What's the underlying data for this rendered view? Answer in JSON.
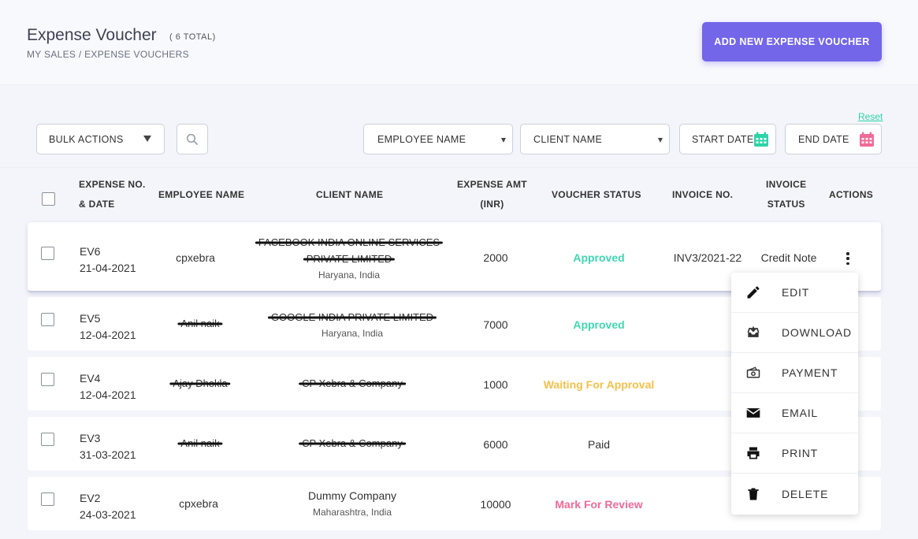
{
  "header": {
    "title": "Expense Voucher",
    "total": "( 6 TOTAL)",
    "breadcrumb": "MY SALES / EXPENSE VOUCHERS",
    "add_button": "ADD NEW EXPENSE VOUCHER"
  },
  "filters": {
    "reset": "Reset",
    "bulk_actions": "BULK ACTIONS",
    "employee_name": "EMPLOYEE NAME",
    "client_name": "CLIENT NAME",
    "start_date": "START DATE",
    "end_date": "END DATE"
  },
  "table": {
    "headers": {
      "expense_no_line1": "EXPENSE NO.",
      "expense_no_line2": "& DATE",
      "employee_name": "EMPLOYEE NAME",
      "client_name": "CLIENT NAME",
      "expense_amt_line1": "EXPENSE AMT",
      "expense_amt_line2": "(INR)",
      "voucher_status": "VOUCHER STATUS",
      "invoice_no": "INVOICE NO.",
      "invoice_status_line1": "INVOICE",
      "invoice_status_line2": "STATUS",
      "actions": "ACTIONS"
    },
    "rows": [
      {
        "no": "EV6",
        "date": "21-04-2021",
        "employee": "cpxebra",
        "client_line1": "FACEBOOK INDIA ONLINE SERVICES",
        "client_line2": "PRIVATE LIMITED",
        "location": "Haryana, India",
        "amount": "2000",
        "status": "Approved",
        "invoice_no": "INV3/2021-22",
        "invoice_status": "Credit Note"
      },
      {
        "no": "EV5",
        "date": "12-04-2021",
        "employee": "Anil naik",
        "client_line1": "GOOGLE INDIA PRIVATE LIMITED",
        "location": "Haryana, India",
        "amount": "7000",
        "status": "Approved"
      },
      {
        "no": "EV4",
        "date": "12-04-2021",
        "employee": "Ajay Dhokla",
        "client_line1": "CP Xebra & Company",
        "amount": "1000",
        "status": "Waiting For Approval"
      },
      {
        "no": "EV3",
        "date": "31-03-2021",
        "employee": "Anil naik",
        "client_line1": "CP Xebra & Company",
        "amount": "6000",
        "status": "Paid"
      },
      {
        "no": "EV2",
        "date": "24-03-2021",
        "employee": "cpxebra",
        "client_line1": "Dummy Company",
        "location": "Maharashtra, India",
        "amount": "10000",
        "status": "Mark For Review"
      }
    ]
  },
  "action_menu": {
    "items": [
      {
        "label": "EDIT",
        "icon": "pencil-icon"
      },
      {
        "label": "DOWNLOAD",
        "icon": "download-tray-icon"
      },
      {
        "label": "PAYMENT",
        "icon": "cash-icon"
      },
      {
        "label": "EMAIL",
        "icon": "envelope-icon"
      },
      {
        "label": "PRINT",
        "icon": "printer-icon"
      },
      {
        "label": "DELETE",
        "icon": "trash-icon"
      }
    ]
  },
  "colors": {
    "accent": "#7366e9",
    "approved": "#3ed8b0",
    "waiting": "#f6c14a",
    "review": "#f26a97",
    "start_cal": "#2dd4a8",
    "end_cal": "#f26a97"
  }
}
